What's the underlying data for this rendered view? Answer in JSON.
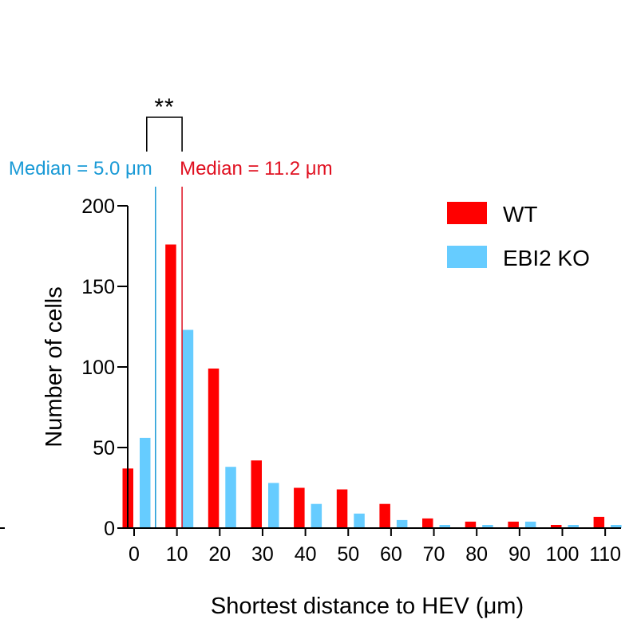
{
  "chart_data": {
    "type": "bar",
    "xlabel": "Shortest distance to HEV (μm)",
    "ylabel": "Number of cells",
    "ylim": [
      0,
      200
    ],
    "xlim": [
      -5,
      113
    ],
    "yticks": [
      0,
      50,
      100,
      150,
      200
    ],
    "xticks": [
      0,
      10,
      20,
      30,
      40,
      50,
      60,
      70,
      80,
      90,
      100,
      110
    ],
    "bin_width": 10,
    "grid": false,
    "legend_position": "top-right",
    "series": [
      {
        "name": "WT",
        "color": "#ff0000",
        "x": [
          0,
          10,
          20,
          30,
          40,
          50,
          60,
          70,
          80,
          90,
          100,
          110
        ],
        "values": [
          37,
          176,
          99,
          42,
          25,
          24,
          15,
          6,
          4,
          4,
          2,
          7
        ]
      },
      {
        "name": "EBI2 KO",
        "color": "#66ccff",
        "x": [
          0,
          10,
          20,
          30,
          40,
          50,
          60,
          70,
          80,
          90,
          100,
          110
        ],
        "values": [
          56,
          123,
          38,
          28,
          15,
          9,
          5,
          2,
          2,
          4,
          2,
          2
        ]
      }
    ],
    "medians": [
      {
        "label": "Median = 5.0 μm",
        "value": 5.0,
        "color": "#1a9ad6"
      },
      {
        "label": "Median = 11.2 μm",
        "value": 11.2,
        "color": "#e01020"
      }
    ],
    "significance": {
      "label": "**",
      "between": [
        5.0,
        11.2
      ]
    }
  }
}
